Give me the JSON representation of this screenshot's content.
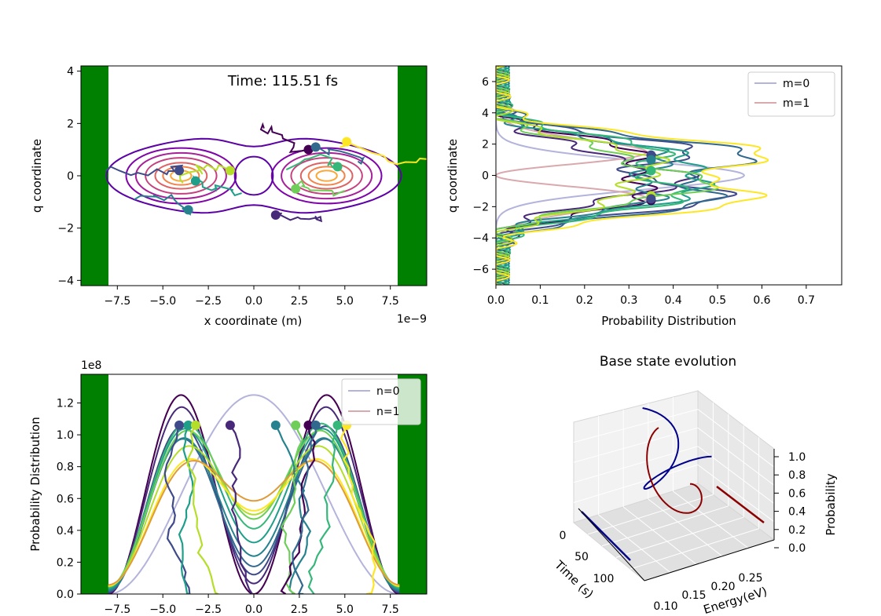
{
  "chart_data": [
    {
      "type": "line",
      "panel": "top-left",
      "annotation": "Time: 115.51 fs",
      "xlabel": "x coordinate (m)",
      "ylabel": "q coordinate",
      "x_offset_label": "1e−9",
      "xlim": [
        -9.5,
        9.5
      ],
      "ylim": [
        -4.2,
        4.2
      ],
      "xticks": [
        "−7.5",
        "−5.0",
        "−2.5",
        "0.0",
        "2.5",
        "5.0",
        "7.5"
      ],
      "yticks": [
        "−4",
        "−2",
        "0",
        "2",
        "4"
      ],
      "walls": [
        [
          -9.5,
          -8.0
        ],
        [
          8.0,
          9.5
        ]
      ],
      "wall_color": "#008000",
      "series": [
        {
          "kind": "contour",
          "levels": [
            1.0,
            0.85,
            0.7,
            0.55,
            0.4,
            0.28,
            0.16
          ]
        },
        {
          "kind": "particles",
          "points": [
            [
              -4.1,
              0.2
            ],
            [
              -3.2,
              -0.2
            ],
            [
              -1.3,
              0.2
            ],
            [
              1.2,
              -1.5
            ],
            [
              -3.6,
              -1.3
            ],
            [
              2.3,
              -0.5
            ],
            [
              3.0,
              1.0
            ],
            [
              3.4,
              1.1
            ],
            [
              4.6,
              0.35
            ],
            [
              5.1,
              1.3
            ]
          ]
        }
      ]
    },
    {
      "type": "line",
      "panel": "top-right",
      "xlabel": "Probability Distribution",
      "ylabel": "q coordinate",
      "xlim": [
        0.0,
        0.78
      ],
      "ylim": [
        -7.0,
        7.0
      ],
      "xticks": [
        "0.0",
        "0.1",
        "0.2",
        "0.3",
        "0.4",
        "0.5",
        "0.6",
        "0.7"
      ],
      "yticks": [
        "−6",
        "−4",
        "−2",
        "0",
        "2",
        "4",
        "6"
      ],
      "legend": [
        {
          "name": "m=0",
          "color": "#b3b3dc"
        },
        {
          "name": "m=1",
          "color": "#d9a9ad"
        }
      ],
      "legend_loc": "upper right",
      "marker_points_q": [
        1.3,
        1.0,
        0.3,
        -1.3,
        -1.6
      ]
    },
    {
      "type": "line",
      "panel": "bottom-left",
      "ylabel": "Probability Distribution",
      "y_offset_label": "1e8",
      "xlim": [
        -9.5,
        9.5
      ],
      "ylim": [
        0.0,
        1.38
      ],
      "xticks": [
        "−7.5",
        "−5.0",
        "−2.5",
        "0.0",
        "2.5",
        "5.0",
        "7.5"
      ],
      "yticks": [
        "0.0",
        "0.2",
        "0.4",
        "0.6",
        "0.8",
        "1.0",
        "1.2"
      ],
      "walls": [
        [
          -9.5,
          -8.0
        ],
        [
          8.0,
          9.5
        ]
      ],
      "wall_color": "#008000",
      "legend": [
        {
          "name": "n=0",
          "color": "#b3b3dc"
        },
        {
          "name": "n=1",
          "color": "#d9a9ad"
        }
      ],
      "legend_loc": "upper right",
      "marker_y": 1.06,
      "marker_x": [
        -4.1,
        -3.6,
        -3.2,
        -1.3,
        1.2,
        2.3,
        3.0,
        3.4,
        4.6,
        5.1
      ]
    },
    {
      "type": "line",
      "panel": "bottom-right",
      "projection": "3d",
      "title": "Base state evolution",
      "xlabel": "Energy(eV)",
      "ylabel": "Time (s)",
      "zlabel": "Probability",
      "xticks": [
        "0.10",
        "0.15",
        "0.20",
        "0.25"
      ],
      "yticks": [
        "0",
        "50",
        "100"
      ],
      "zticks": [
        "0.0",
        "0.2",
        "0.4",
        "0.6",
        "0.8",
        "1.0"
      ],
      "series_colors": [
        "#00008b",
        "#8b0000"
      ]
    }
  ]
}
